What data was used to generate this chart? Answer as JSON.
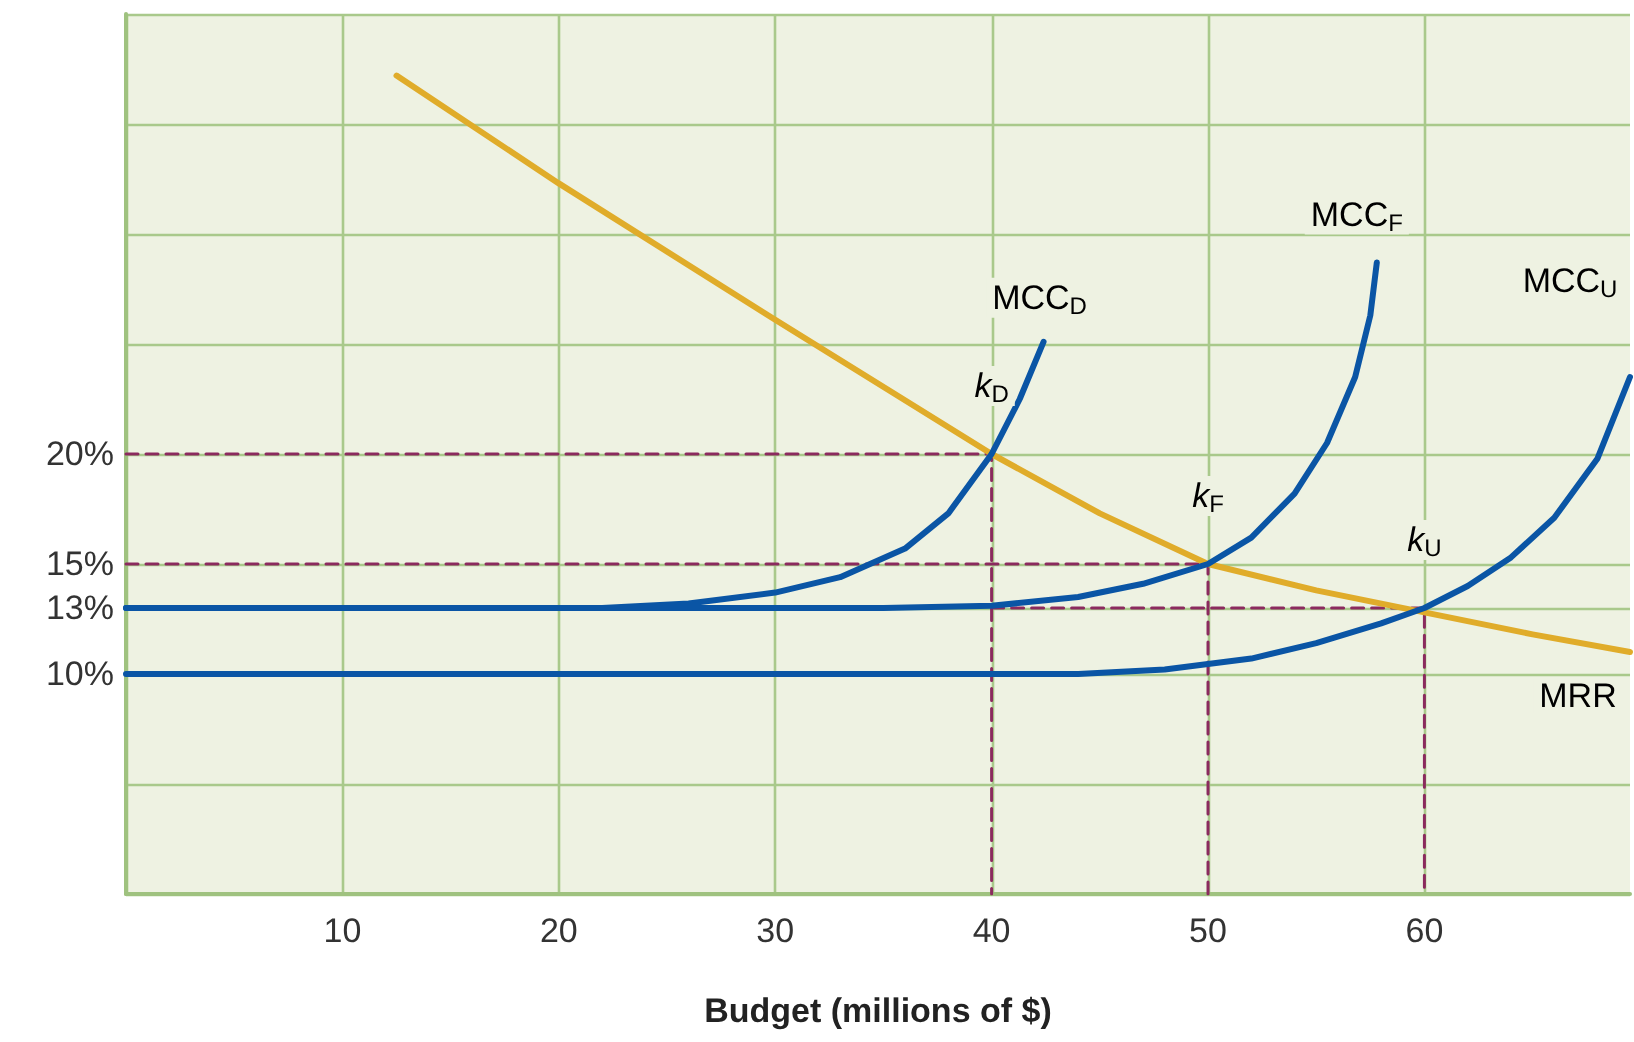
{
  "chart_data": {
    "type": "line",
    "xlabel": "Budget (millions of $)",
    "xlim": [
      0,
      69.5
    ],
    "xticks": [
      {
        "value": 0,
        "label": null
      },
      10,
      20,
      30,
      40,
      50,
      60
    ],
    "ylim": [
      0,
      40
    ],
    "yticks": [
      {
        "value": 0,
        "label": null
      },
      {
        "value": 5,
        "label": null
      },
      {
        "value": 10,
        "label": "10%"
      },
      {
        "value": 13,
        "label": "13%"
      },
      {
        "value": 15,
        "label": "15%"
      },
      {
        "value": 20,
        "label": "20%"
      },
      {
        "value": 25,
        "label": null
      },
      {
        "value": 30,
        "label": null
      },
      {
        "value": 35,
        "label": null
      },
      {
        "value": 40,
        "label": null
      }
    ],
    "grid": true,
    "marker": "none",
    "series": [
      {
        "name": "MRR",
        "color": "#e0ac2a",
        "x": [
          12.5,
          20,
          30,
          40,
          45,
          50,
          55,
          60,
          65,
          69.5
        ],
        "values": [
          37.2,
          32.3,
          26.1,
          20,
          17.3,
          15,
          13.8,
          12.8,
          11.8,
          11
        ]
      },
      {
        "name": "MCC$_{D}$",
        "color": "#0a55a5",
        "x": [
          0,
          22,
          26,
          30,
          33,
          36,
          38,
          40,
          41.3,
          42.4
        ],
        "values": [
          13,
          13,
          13.2,
          13.7,
          14.4,
          15.7,
          17.3,
          20,
          22.5,
          25.1
        ]
      },
      {
        "name": "MCC$_{F}$",
        "color": "#0a55a5",
        "x": [
          0,
          35,
          40,
          44,
          47,
          50,
          52,
          54,
          55.5,
          56.8,
          57.5,
          57.8
        ],
        "values": [
          13,
          13,
          13.1,
          13.5,
          14.1,
          15,
          16.2,
          18.2,
          20.5,
          23.5,
          26.3,
          28.7
        ]
      },
      {
        "name": "MCC$_{U}$",
        "color": "#0a55a5",
        "x": [
          0,
          44,
          48,
          52,
          55,
          58,
          60,
          62,
          64,
          66,
          68,
          69.5
        ],
        "values": [
          10,
          10,
          10.2,
          10.7,
          11.4,
          12.3,
          13,
          14,
          15.3,
          17.1,
          19.8,
          23.5
        ]
      },
      {
        "color": "#8b2a5e",
        "type": "line",
        "line_style": "dashed",
        "x": [
          0,
          40,
          40
        ],
        "values": [
          20,
          20,
          0
        ]
      },
      {
        "color": "#8b2a5e",
        "type": "line",
        "line_style": "dashed",
        "x": [
          0,
          50,
          50
        ],
        "values": [
          15,
          15,
          0
        ]
      },
      {
        "color": "#8b2a5e",
        "type": "line",
        "line_style": "dashed",
        "x": [
          40,
          60,
          60
        ],
        "values": [
          13,
          13,
          0
        ]
      }
    ],
    "annotations": [
      {
        "text": "k$_{D}$",
        "x": 40,
        "y": 20
      },
      {
        "text": "k$_{F}$",
        "x": 50,
        "y": 15
      },
      {
        "text": "k$_{U}$",
        "x": 60,
        "y": 13
      }
    ]
  }
}
